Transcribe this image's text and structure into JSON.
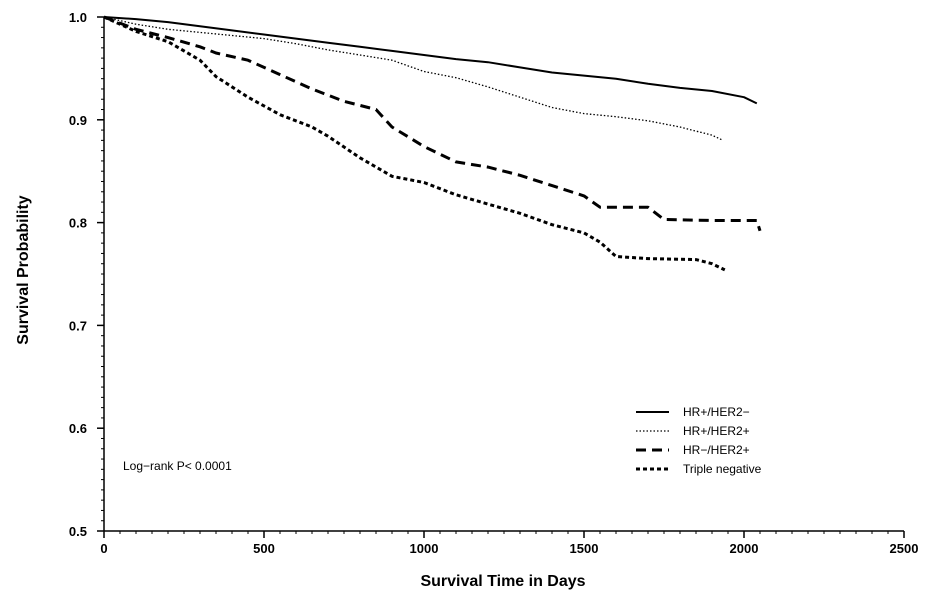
{
  "chart_data": {
    "type": "line",
    "title": "",
    "xlabel": "Survival Time in Days",
    "ylabel": "Survival Probability",
    "xlim": [
      0,
      2500
    ],
    "ylim": [
      0.5,
      1.0
    ],
    "x_ticks": [
      0,
      500,
      1000,
      1500,
      2000,
      2500
    ],
    "x_tick_labels": [
      "0",
      "500",
      "1000",
      "1500",
      "2000",
      "2500"
    ],
    "y_ticks": [
      0.5,
      0.6,
      0.7,
      0.8,
      0.9,
      1.0
    ],
    "y_tick_labels": [
      "0.5",
      "0.6",
      "0.7",
      "0.8",
      "0.9",
      "1.0"
    ],
    "grid": false,
    "legend_position": "bottom-right",
    "annotation": "Log−rank P< 0.0001",
    "series": [
      {
        "name": "HR+/HER2−",
        "style": "solid",
        "points": [
          [
            0,
            1.0
          ],
          [
            100,
            0.998
          ],
          [
            200,
            0.995
          ],
          [
            300,
            0.991
          ],
          [
            400,
            0.987
          ],
          [
            500,
            0.983
          ],
          [
            600,
            0.979
          ],
          [
            700,
            0.975
          ],
          [
            800,
            0.971
          ],
          [
            900,
            0.967
          ],
          [
            1000,
            0.963
          ],
          [
            1100,
            0.959
          ],
          [
            1200,
            0.956
          ],
          [
            1300,
            0.951
          ],
          [
            1400,
            0.946
          ],
          [
            1500,
            0.943
          ],
          [
            1600,
            0.94
          ],
          [
            1700,
            0.935
          ],
          [
            1800,
            0.931
          ],
          [
            1900,
            0.928
          ],
          [
            2000,
            0.922
          ],
          [
            2040,
            0.916
          ]
        ]
      },
      {
        "name": "HR+/HER2+",
        "style": "dotted",
        "points": [
          [
            0,
            1.0
          ],
          [
            100,
            0.993
          ],
          [
            200,
            0.988
          ],
          [
            300,
            0.985
          ],
          [
            400,
            0.982
          ],
          [
            500,
            0.979
          ],
          [
            600,
            0.974
          ],
          [
            700,
            0.968
          ],
          [
            800,
            0.963
          ],
          [
            900,
            0.958
          ],
          [
            1000,
            0.947
          ],
          [
            1100,
            0.941
          ],
          [
            1200,
            0.932
          ],
          [
            1300,
            0.922
          ],
          [
            1400,
            0.912
          ],
          [
            1500,
            0.906
          ],
          [
            1600,
            0.903
          ],
          [
            1700,
            0.899
          ],
          [
            1800,
            0.893
          ],
          [
            1900,
            0.885
          ],
          [
            1935,
            0.88
          ]
        ]
      },
      {
        "name": "HR−/HER2+",
        "style": "dashed",
        "points": [
          [
            0,
            1.0
          ],
          [
            100,
            0.988
          ],
          [
            200,
            0.98
          ],
          [
            300,
            0.971
          ],
          [
            350,
            0.965
          ],
          [
            450,
            0.958
          ],
          [
            550,
            0.944
          ],
          [
            650,
            0.93
          ],
          [
            750,
            0.918
          ],
          [
            850,
            0.91
          ],
          [
            900,
            0.893
          ],
          [
            1000,
            0.874
          ],
          [
            1100,
            0.859
          ],
          [
            1200,
            0.854
          ],
          [
            1300,
            0.846
          ],
          [
            1400,
            0.836
          ],
          [
            1500,
            0.826
          ],
          [
            1550,
            0.815
          ],
          [
            1700,
            0.815
          ],
          [
            1750,
            0.803
          ],
          [
            1900,
            0.802
          ],
          [
            2040,
            0.802
          ],
          [
            2050,
            0.792
          ]
        ]
      },
      {
        "name": "Triple negative",
        "style": "short-dashed",
        "points": [
          [
            0,
            1.0
          ],
          [
            100,
            0.986
          ],
          [
            200,
            0.976
          ],
          [
            300,
            0.958
          ],
          [
            350,
            0.942
          ],
          [
            450,
            0.922
          ],
          [
            550,
            0.905
          ],
          [
            650,
            0.893
          ],
          [
            700,
            0.884
          ],
          [
            800,
            0.863
          ],
          [
            900,
            0.845
          ],
          [
            1000,
            0.839
          ],
          [
            1100,
            0.827
          ],
          [
            1200,
            0.818
          ],
          [
            1300,
            0.809
          ],
          [
            1400,
            0.798
          ],
          [
            1500,
            0.79
          ],
          [
            1550,
            0.781
          ],
          [
            1600,
            0.767
          ],
          [
            1700,
            0.765
          ],
          [
            1850,
            0.764
          ],
          [
            1900,
            0.76
          ],
          [
            1940,
            0.754
          ]
        ]
      }
    ]
  }
}
